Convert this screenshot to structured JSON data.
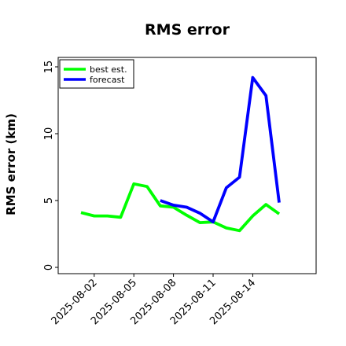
{
  "chart_data": {
    "type": "line",
    "title": "RMS error",
    "xlabel": "",
    "ylabel": "RMS error (km)",
    "x_date_start": "2025-08-01",
    "x_date_end": "2025-08-16",
    "ylim": [
      0,
      16
    ],
    "y_ticks": [
      "0",
      "5",
      "10",
      "15"
    ],
    "x_ticks": [
      "2025-08-02",
      "2025-08-05",
      "2025-08-08",
      "2025-08-11",
      "2025-08-14"
    ],
    "grid": false,
    "legend_position": "top-left",
    "series": [
      {
        "name": "best est.",
        "color": "#00ff00",
        "x": [
          "2025-08-01",
          "2025-08-02",
          "2025-08-03",
          "2025-08-04",
          "2025-08-05",
          "2025-08-06",
          "2025-08-07",
          "2025-08-08",
          "2025-08-09",
          "2025-08-10",
          "2025-08-11",
          "2025-08-12",
          "2025-08-13",
          "2025-08-14",
          "2025-08-15",
          "2025-08-16"
        ],
        "y": [
          4.1,
          3.85,
          3.85,
          3.75,
          6.25,
          6.05,
          4.6,
          4.5,
          3.9,
          3.35,
          3.4,
          2.95,
          2.75,
          3.85,
          4.7,
          4.0
        ]
      },
      {
        "name": "forecast",
        "color": "#0000ff",
        "x": [
          "2025-08-07",
          "2025-08-08",
          "2025-08-09",
          "2025-08-10",
          "2025-08-11",
          "2025-08-12",
          "2025-08-13",
          "2025-08-14",
          "2025-08-15",
          "2025-08-16"
        ],
        "y": [
          5.0,
          4.65,
          4.5,
          4.05,
          3.4,
          5.95,
          6.75,
          14.2,
          12.85,
          4.85
        ]
      }
    ]
  }
}
